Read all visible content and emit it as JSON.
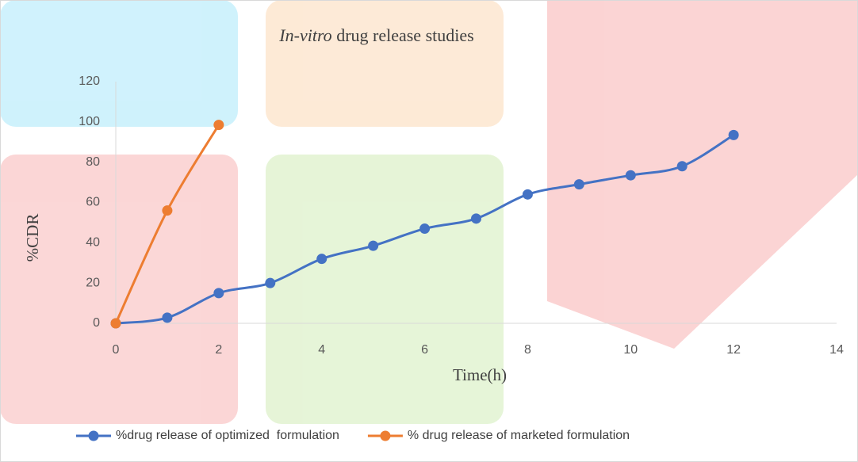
{
  "chart_data": {
    "type": "line",
    "title": {
      "italic": "In-vitro",
      "rest": "drug release studies"
    },
    "x_label": "Time(h)",
    "y_label": "%CDR",
    "series": [
      {
        "name": "%drug release of optimized  formulation",
        "color": "#4472c4",
        "x": [
          0,
          1,
          2,
          3,
          4,
          5,
          6,
          7,
          8,
          9,
          10,
          11,
          12
        ],
        "values": [
          0,
          2.8,
          15,
          20,
          32,
          38.5,
          47,
          52,
          64,
          69,
          73.5,
          78,
          93.5
        ]
      },
      {
        "name": "% drug release of marketed formulation",
        "color": "#ed7d31",
        "x": [
          0,
          1,
          2
        ],
        "values": [
          0,
          56,
          98.5
        ]
      }
    ],
    "xlim": [
      0,
      14
    ],
    "xticks": [
      0,
      2,
      4,
      6,
      8,
      10,
      12,
      14
    ],
    "ylim": [
      0,
      120
    ],
    "yticks": [
      0,
      20,
      40,
      60,
      80,
      100,
      120
    ],
    "legend": "bottom"
  }
}
